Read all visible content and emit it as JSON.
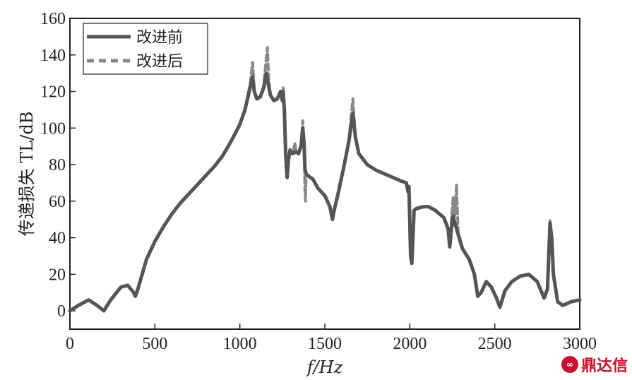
{
  "chart_data": {
    "type": "line",
    "xlabel": "f/Hz",
    "ylabel": "传递损失 TL/dB",
    "xlim": [
      0,
      3000
    ],
    "ylim": [
      -10,
      160
    ],
    "xticks": [
      0,
      500,
      1000,
      1500,
      2000,
      2500,
      3000
    ],
    "yticks": [
      0,
      20,
      40,
      60,
      80,
      100,
      120,
      140,
      160
    ],
    "grid": false,
    "legend_position": "top-left",
    "series": [
      {
        "name": "改进前",
        "style": "solid",
        "color": "#555555",
        "points": [
          [
            0,
            0
          ],
          [
            50,
            3
          ],
          [
            110,
            6
          ],
          [
            160,
            3
          ],
          [
            200,
            0
          ],
          [
            240,
            6
          ],
          [
            300,
            13
          ],
          [
            340,
            14
          ],
          [
            375,
            10
          ],
          [
            385,
            8
          ],
          [
            400,
            12
          ],
          [
            450,
            28
          ],
          [
            500,
            38
          ],
          [
            550,
            46
          ],
          [
            600,
            53
          ],
          [
            650,
            59
          ],
          [
            700,
            64
          ],
          [
            750,
            69
          ],
          [
            800,
            74
          ],
          [
            850,
            79
          ],
          [
            900,
            85
          ],
          [
            950,
            93
          ],
          [
            1000,
            102
          ],
          [
            1030,
            110
          ],
          [
            1060,
            122
          ],
          [
            1075,
            128
          ],
          [
            1085,
            120
          ],
          [
            1100,
            116
          ],
          [
            1120,
            117
          ],
          [
            1140,
            122
          ],
          [
            1155,
            130
          ],
          [
            1165,
            125
          ],
          [
            1180,
            118
          ],
          [
            1200,
            115
          ],
          [
            1220,
            116
          ],
          [
            1240,
            120
          ],
          [
            1250,
            115
          ],
          [
            1255,
            120
          ],
          [
            1262,
            110
          ],
          [
            1270,
            85
          ],
          [
            1278,
            73
          ],
          [
            1285,
            82
          ],
          [
            1295,
            88
          ],
          [
            1310,
            86
          ],
          [
            1330,
            87
          ],
          [
            1345,
            86
          ],
          [
            1360,
            90
          ],
          [
            1370,
            100
          ],
          [
            1378,
            92
          ],
          [
            1383,
            78
          ],
          [
            1390,
            75
          ],
          [
            1400,
            74
          ],
          [
            1430,
            72
          ],
          [
            1460,
            67
          ],
          [
            1500,
            63
          ],
          [
            1530,
            57
          ],
          [
            1545,
            50
          ],
          [
            1555,
            55
          ],
          [
            1580,
            65
          ],
          [
            1610,
            78
          ],
          [
            1640,
            92
          ],
          [
            1665,
            108
          ],
          [
            1680,
            95
          ],
          [
            1700,
            86
          ],
          [
            1750,
            80
          ],
          [
            1800,
            77
          ],
          [
            1850,
            75
          ],
          [
            1900,
            73
          ],
          [
            1950,
            71
          ],
          [
            1980,
            70
          ],
          [
            1990,
            65
          ],
          [
            1995,
            68
          ],
          [
            2005,
            30
          ],
          [
            2012,
            26
          ],
          [
            2025,
            55
          ],
          [
            2040,
            56
          ],
          [
            2080,
            57
          ],
          [
            2110,
            57
          ],
          [
            2150,
            55
          ],
          [
            2200,
            51
          ],
          [
            2225,
            45
          ],
          [
            2235,
            35
          ],
          [
            2245,
            45
          ],
          [
            2255,
            52
          ],
          [
            2265,
            48
          ],
          [
            2275,
            45
          ],
          [
            2290,
            40
          ],
          [
            2310,
            34
          ],
          [
            2350,
            28
          ],
          [
            2380,
            20
          ],
          [
            2400,
            8
          ],
          [
            2420,
            10
          ],
          [
            2450,
            16
          ],
          [
            2480,
            13
          ],
          [
            2510,
            7
          ],
          [
            2530,
            2
          ],
          [
            2560,
            11
          ],
          [
            2600,
            16
          ],
          [
            2650,
            19
          ],
          [
            2700,
            20
          ],
          [
            2750,
            16
          ],
          [
            2790,
            7
          ],
          [
            2810,
            12
          ],
          [
            2825,
            48
          ],
          [
            2835,
            40
          ],
          [
            2845,
            20
          ],
          [
            2870,
            5
          ],
          [
            2900,
            3
          ],
          [
            2950,
            5
          ],
          [
            3000,
            6
          ]
        ]
      },
      {
        "name": "改进后",
        "style": "dashed",
        "color": "#888888",
        "points": [
          [
            0,
            0
          ],
          [
            50,
            3
          ],
          [
            110,
            6
          ],
          [
            160,
            3
          ],
          [
            200,
            0
          ],
          [
            240,
            6
          ],
          [
            300,
            13
          ],
          [
            340,
            14
          ],
          [
            375,
            10
          ],
          [
            385,
            8
          ],
          [
            400,
            12
          ],
          [
            450,
            28
          ],
          [
            500,
            38
          ],
          [
            550,
            46
          ],
          [
            600,
            53
          ],
          [
            650,
            59
          ],
          [
            700,
            64
          ],
          [
            750,
            69
          ],
          [
            800,
            74
          ],
          [
            850,
            79
          ],
          [
            900,
            85
          ],
          [
            950,
            93
          ],
          [
            1000,
            102
          ],
          [
            1030,
            110
          ],
          [
            1060,
            124
          ],
          [
            1075,
            136
          ],
          [
            1085,
            121
          ],
          [
            1100,
            116
          ],
          [
            1120,
            117
          ],
          [
            1140,
            123
          ],
          [
            1155,
            138
          ],
          [
            1162,
            144
          ],
          [
            1170,
            126
          ],
          [
            1180,
            118
          ],
          [
            1200,
            115
          ],
          [
            1220,
            116
          ],
          [
            1240,
            120
          ],
          [
            1250,
            115
          ],
          [
            1255,
            122
          ],
          [
            1262,
            110
          ],
          [
            1270,
            85
          ],
          [
            1278,
            73
          ],
          [
            1285,
            82
          ],
          [
            1295,
            88
          ],
          [
            1310,
            86
          ],
          [
            1325,
            92
          ],
          [
            1330,
            87
          ],
          [
            1345,
            86
          ],
          [
            1360,
            90
          ],
          [
            1370,
            104
          ],
          [
            1378,
            92
          ],
          [
            1383,
            66
          ],
          [
            1386,
            60
          ],
          [
            1390,
            75
          ],
          [
            1400,
            74
          ],
          [
            1430,
            72
          ],
          [
            1460,
            67
          ],
          [
            1500,
            63
          ],
          [
            1530,
            57
          ],
          [
            1545,
            50
          ],
          [
            1555,
            55
          ],
          [
            1580,
            65
          ],
          [
            1610,
            78
          ],
          [
            1640,
            92
          ],
          [
            1665,
            116
          ],
          [
            1680,
            95
          ],
          [
            1700,
            86
          ],
          [
            1750,
            80
          ],
          [
            1800,
            77
          ],
          [
            1850,
            75
          ],
          [
            1900,
            73
          ],
          [
            1950,
            71
          ],
          [
            1980,
            70
          ],
          [
            1990,
            65
          ],
          [
            1995,
            68
          ],
          [
            2005,
            30
          ],
          [
            2012,
            26
          ],
          [
            2025,
            55
          ],
          [
            2040,
            56
          ],
          [
            2080,
            57
          ],
          [
            2110,
            57
          ],
          [
            2150,
            55
          ],
          [
            2200,
            51
          ],
          [
            2225,
            45
          ],
          [
            2235,
            35
          ],
          [
            2245,
            50
          ],
          [
            2255,
            62
          ],
          [
            2265,
            52
          ],
          [
            2275,
            69
          ],
          [
            2285,
            42
          ],
          [
            2295,
            40
          ],
          [
            2310,
            34
          ],
          [
            2350,
            28
          ],
          [
            2380,
            20
          ],
          [
            2400,
            8
          ],
          [
            2420,
            10
          ],
          [
            2450,
            16
          ],
          [
            2480,
            13
          ],
          [
            2510,
            7
          ],
          [
            2530,
            2
          ],
          [
            2560,
            11
          ],
          [
            2600,
            16
          ],
          [
            2650,
            19
          ],
          [
            2700,
            20
          ],
          [
            2750,
            16
          ],
          [
            2790,
            7
          ],
          [
            2810,
            12
          ],
          [
            2825,
            50
          ],
          [
            2835,
            40
          ],
          [
            2845,
            20
          ],
          [
            2870,
            5
          ],
          [
            2900,
            3
          ],
          [
            2950,
            5
          ],
          [
            3000,
            6
          ]
        ]
      }
    ]
  },
  "watermark": {
    "logo_glyph": "∞",
    "text": "鼎达信"
  }
}
